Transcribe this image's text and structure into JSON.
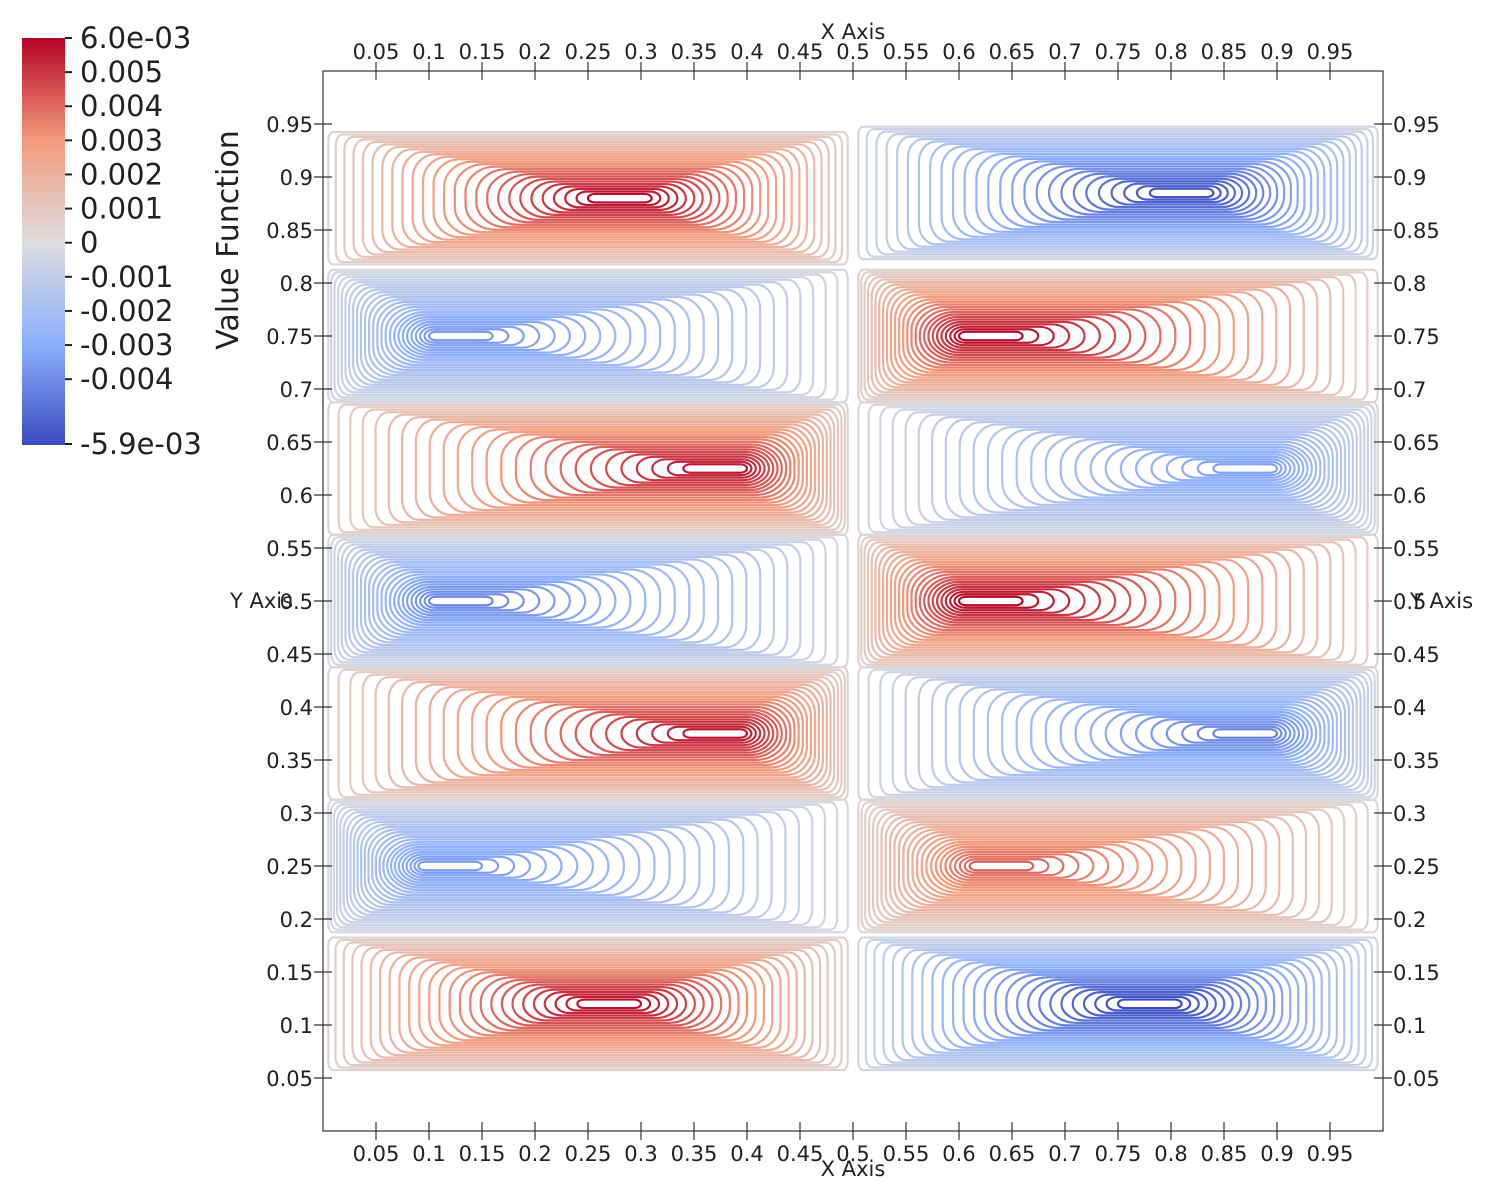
{
  "chart_data": {
    "type": "contour",
    "title": "",
    "xlabel": "X Axis",
    "ylabel": "Y Axis",
    "xlim": [
      0,
      1
    ],
    "ylim": [
      0,
      1
    ],
    "x_ticks": [
      "0.05",
      "0.1",
      "0.15",
      "0.2",
      "0.25",
      "0.3",
      "0.35",
      "0.4",
      "0.45",
      "0.5",
      "0.55",
      "0.6",
      "0.65",
      "0.7",
      "0.75",
      "0.8",
      "0.85",
      "0.9",
      "0.95"
    ],
    "y_ticks": [
      "0.05",
      "0.1",
      "0.15",
      "0.2",
      "0.25",
      "0.3",
      "0.35",
      "0.4",
      "0.45",
      "0.5",
      "0.55",
      "0.6",
      "0.65",
      "0.7",
      "0.75",
      "0.8",
      "0.85",
      "0.9",
      "0.95"
    ],
    "x_tick_values": [
      0.05,
      0.1,
      0.15,
      0.2,
      0.25,
      0.3,
      0.35,
      0.4,
      0.45,
      0.5,
      0.55,
      0.6,
      0.65,
      0.7,
      0.75,
      0.8,
      0.85,
      0.9,
      0.95
    ],
    "y_tick_values": [
      0.05,
      0.1,
      0.15,
      0.2,
      0.25,
      0.3,
      0.35,
      0.4,
      0.45,
      0.5,
      0.55,
      0.6,
      0.65,
      0.7,
      0.75,
      0.8,
      0.85,
      0.9,
      0.95
    ],
    "colorbar": {
      "title": "Value Function",
      "min": -0.0059,
      "max": 0.006,
      "min_label": "-5.9e-03",
      "max_label": "6.0e-03",
      "labels": [
        "0.005",
        "0.004",
        "0.003",
        "0.002",
        "0.001",
        "0",
        "-0.001",
        "-0.002",
        "-0.003",
        "-0.004"
      ],
      "label_values": [
        0.005,
        0.004,
        0.003,
        0.002,
        0.001,
        0,
        -0.001,
        -0.002,
        -0.003,
        -0.004
      ],
      "colormap": [
        "#3b4cc0",
        "#dddddd",
        "#b40426"
      ]
    },
    "cells": [
      {
        "x_center": 0.27,
        "y_center": 0.12,
        "peak": 0.0057
      },
      {
        "x_center": 0.78,
        "y_center": 0.12,
        "peak": -0.0059
      },
      {
        "x_center": 0.12,
        "y_center": 0.25,
        "peak": -0.0036
      },
      {
        "x_center": 0.64,
        "y_center": 0.25,
        "peak": 0.0041
      },
      {
        "x_center": 0.37,
        "y_center": 0.375,
        "peak": 0.0056
      },
      {
        "x_center": 0.87,
        "y_center": 0.375,
        "peak": -0.0042
      },
      {
        "x_center": 0.13,
        "y_center": 0.5,
        "peak": -0.0041
      },
      {
        "x_center": 0.63,
        "y_center": 0.5,
        "peak": 0.0059
      },
      {
        "x_center": 0.37,
        "y_center": 0.625,
        "peak": 0.0056
      },
      {
        "x_center": 0.87,
        "y_center": 0.625,
        "peak": -0.0034
      },
      {
        "x_center": 0.13,
        "y_center": 0.75,
        "peak": -0.0037
      },
      {
        "x_center": 0.63,
        "y_center": 0.75,
        "peak": 0.0058
      },
      {
        "x_center": 0.28,
        "y_center": 0.88,
        "peak": 0.0058
      },
      {
        "x_center": 0.81,
        "y_center": 0.885,
        "peak": -0.0056
      }
    ]
  }
}
